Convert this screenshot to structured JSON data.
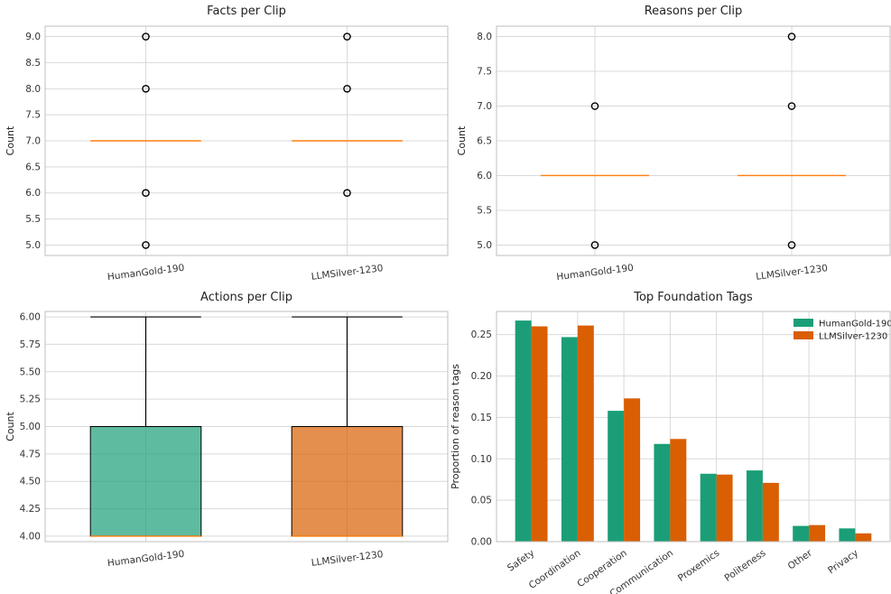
{
  "chart_data": [
    {
      "id": "facts",
      "type": "box",
      "title": "Facts per Clip",
      "ylabel": "Count",
      "ylim": [
        4.8,
        9.2
      ],
      "yticks": [
        "5.0",
        "5.5",
        "6.0",
        "6.5",
        "7.0",
        "7.5",
        "8.0",
        "8.5",
        "9.0"
      ],
      "categories": [
        "HumanGold-190",
        "LLMSilver-1230"
      ],
      "boxes": [
        {
          "q1": 7,
          "median": 7,
          "q3": 7,
          "whislo": 7,
          "whishi": 7,
          "fliers": [
            5,
            6,
            8,
            9
          ]
        },
        {
          "q1": 7,
          "median": 7,
          "q3": 7,
          "whislo": 7,
          "whishi": 7,
          "fliers": [
            6,
            8,
            9
          ]
        }
      ],
      "filled": false
    },
    {
      "id": "reasons",
      "type": "box",
      "title": "Reasons per Clip",
      "ylabel": "Count",
      "ylim": [
        4.85,
        8.15
      ],
      "yticks": [
        "5.0",
        "5.5",
        "6.0",
        "6.5",
        "7.0",
        "7.5",
        "8.0"
      ],
      "categories": [
        "HumanGold-190",
        "LLMSilver-1230"
      ],
      "boxes": [
        {
          "q1": 6,
          "median": 6,
          "q3": 6,
          "whislo": 6,
          "whishi": 6,
          "fliers": [
            5,
            7
          ]
        },
        {
          "q1": 6,
          "median": 6,
          "q3": 6,
          "whislo": 6,
          "whishi": 6,
          "fliers": [
            5,
            7,
            8
          ]
        }
      ],
      "filled": false
    },
    {
      "id": "actions",
      "type": "box",
      "title": "Actions per Clip",
      "ylabel": "Count",
      "ylim": [
        3.95,
        6.05
      ],
      "yticks": [
        "4.00",
        "4.25",
        "4.50",
        "4.75",
        "5.00",
        "5.25",
        "5.50",
        "5.75",
        "6.00"
      ],
      "categories": [
        "HumanGold-190",
        "LLMSilver-1230"
      ],
      "boxes": [
        {
          "q1": 4,
          "median": 4,
          "q3": 5,
          "whislo": 4,
          "whishi": 6,
          "fliers": []
        },
        {
          "q1": 4,
          "median": 4,
          "q3": 5,
          "whislo": 4,
          "whishi": 6,
          "fliers": []
        }
      ],
      "filled": true,
      "colors": [
        "#1b9e77",
        "#d95f02"
      ]
    },
    {
      "id": "tags",
      "type": "bar",
      "title": "Top Foundation Tags",
      "ylabel": "Proportion of reason tags",
      "ylim": [
        0,
        0.278
      ],
      "yticks": [
        "0.00",
        "0.05",
        "0.10",
        "0.15",
        "0.20",
        "0.25"
      ],
      "categories": [
        "Safety",
        "Coordination",
        "Cooperation",
        "Communication",
        "Proxemics",
        "Politeness",
        "Other",
        "Privacy"
      ],
      "series": [
        {
          "name": "HumanGold-190",
          "color": "#1b9e77",
          "values": [
            0.267,
            0.247,
            0.158,
            0.118,
            0.082,
            0.086,
            0.019,
            0.016
          ]
        },
        {
          "name": "LLMSilver-1230",
          "color": "#d95f02",
          "values": [
            0.26,
            0.261,
            0.173,
            0.124,
            0.081,
            0.071,
            0.02,
            0.01
          ]
        }
      ],
      "legend": "top-right"
    }
  ],
  "style": {
    "median_color": "#ff7f0e",
    "grid_color": "#d9d9d9",
    "axis_color": "#bfbfbf"
  }
}
